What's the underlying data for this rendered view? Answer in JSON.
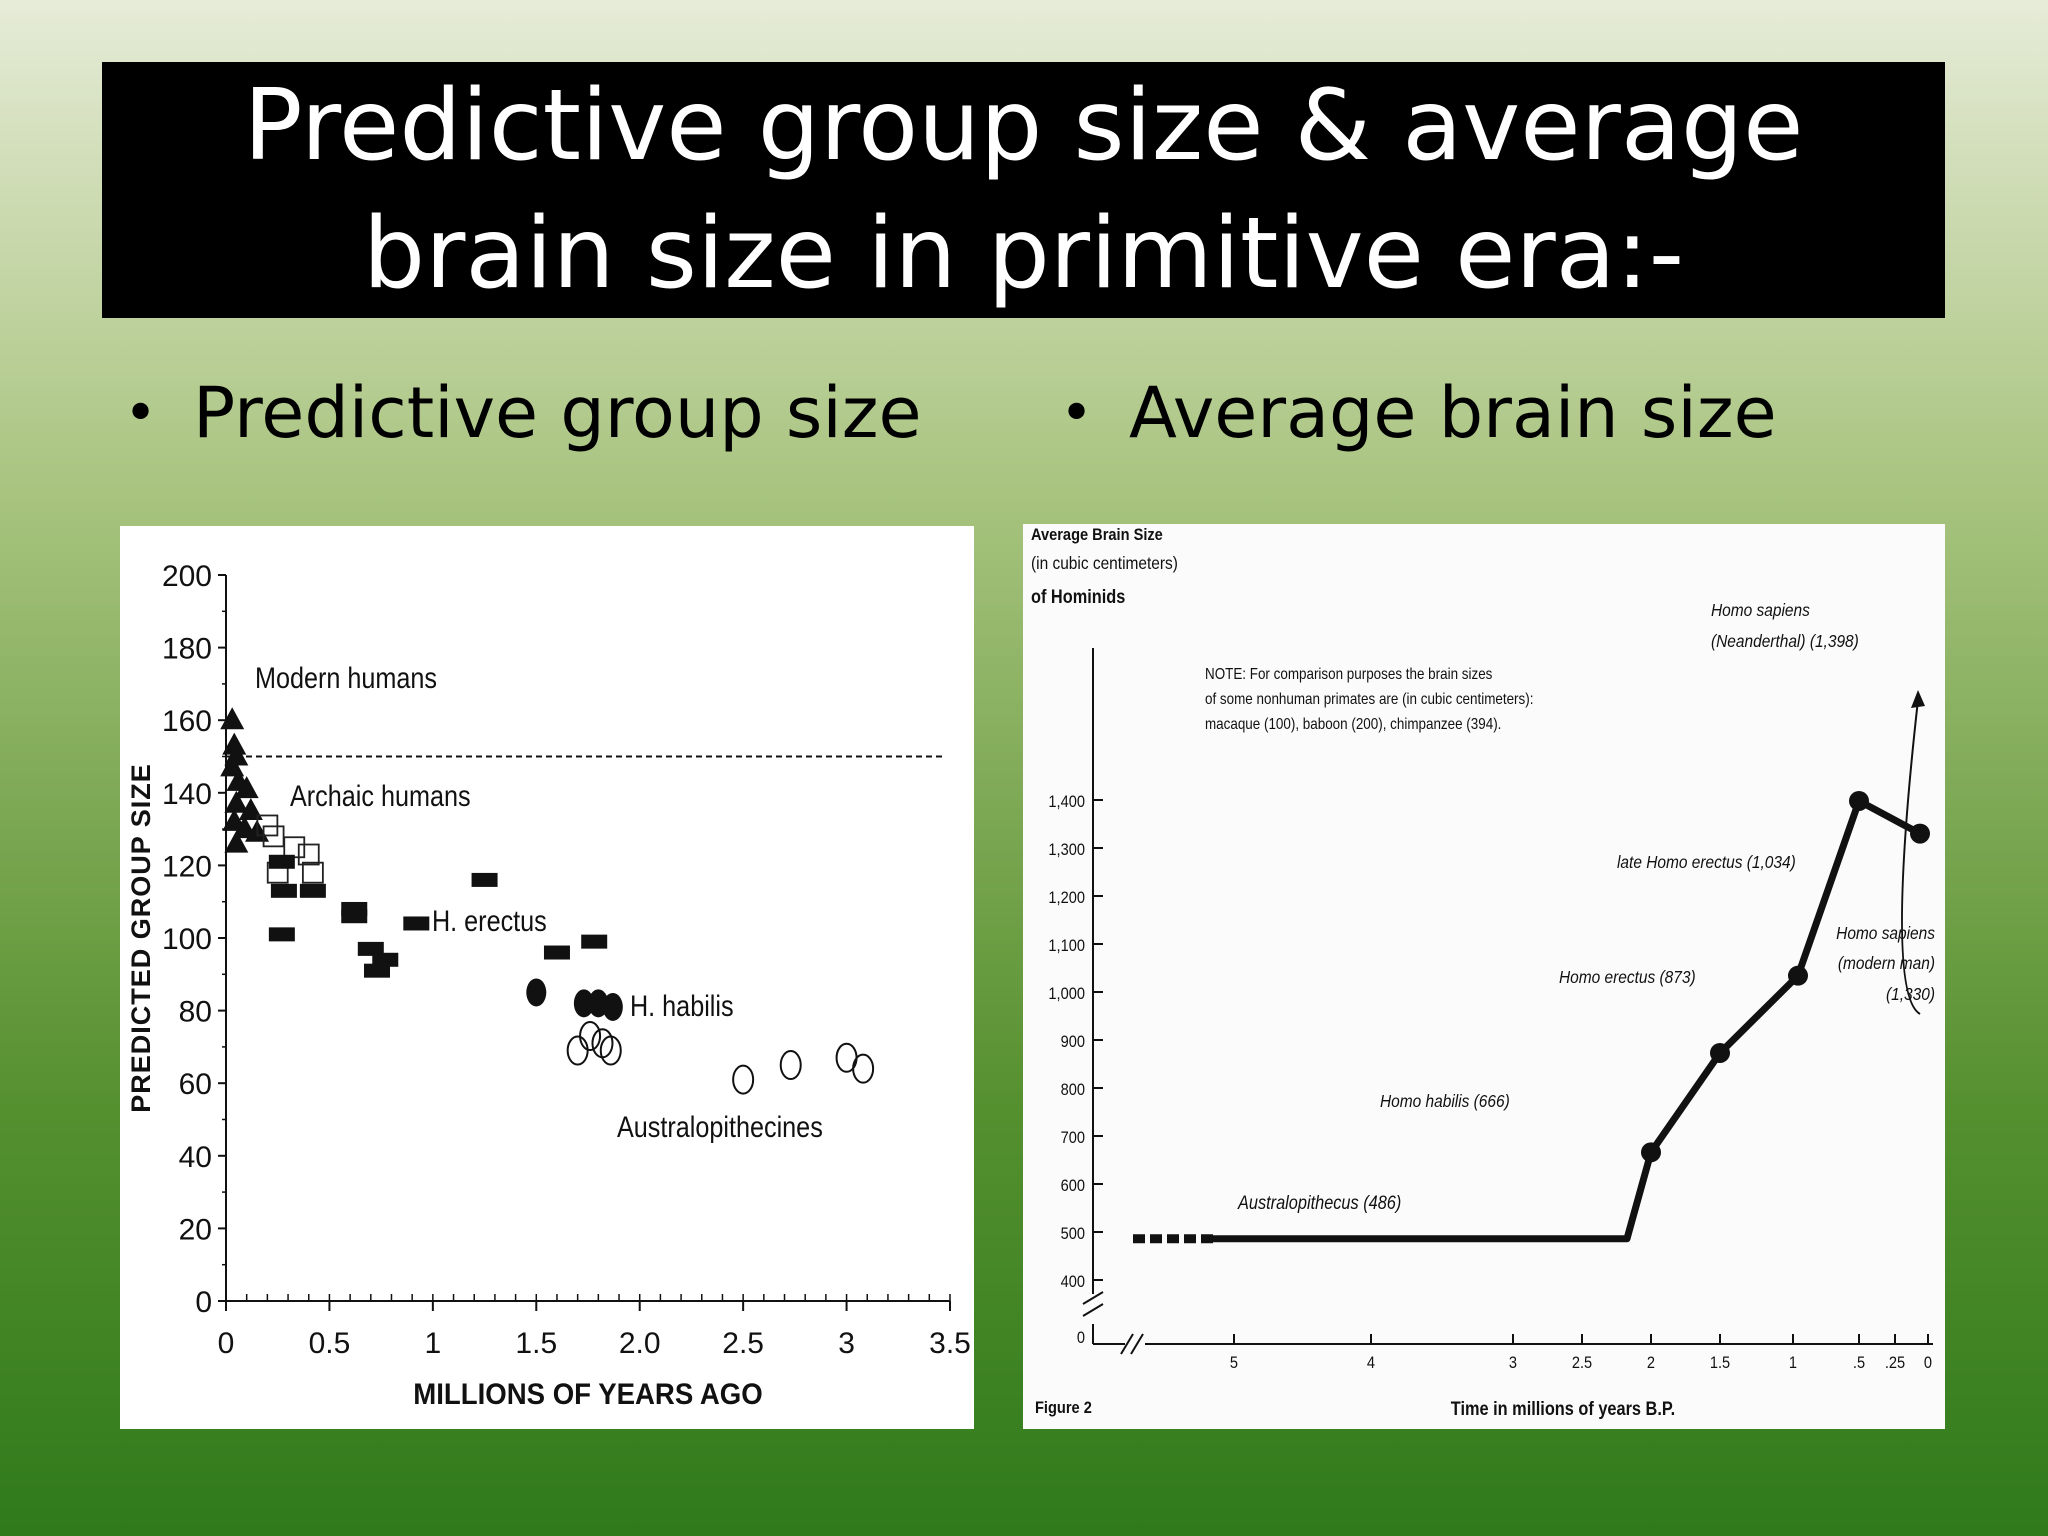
{
  "slide": {
    "title_line1": "Predictive group size & average",
    "title_line2": "brain size in primitive era:-",
    "bullets": [
      "Predictive group size",
      "Average brain size"
    ]
  },
  "chart_data": [
    {
      "type": "scatter",
      "title": "",
      "xlabel": "MILLIONS OF YEARS AGO",
      "ylabel": "PREDICTED GROUP SIZE",
      "xlim": [
        0,
        3.5
      ],
      "ylim": [
        0,
        200
      ],
      "x_ticks": [
        0,
        0.5,
        1,
        1.5,
        2.0,
        2.5,
        3,
        3.5
      ],
      "x_tick_labels": [
        "0",
        "0.5",
        "1",
        "1.5",
        "2.0",
        "2.5",
        "3",
        "3.5"
      ],
      "y_ticks": [
        0,
        20,
        40,
        60,
        80,
        100,
        120,
        140,
        160,
        180,
        200
      ],
      "y_tick_labels": [
        "0",
        "20",
        "40",
        "60",
        "80",
        "100",
        "120",
        "140",
        "160",
        "180",
        "200"
      ],
      "reference_line": {
        "y": 150,
        "style": "dashed"
      },
      "groups": [
        {
          "name": "Modern humans",
          "marker": "triangle-filled",
          "points": [
            [
              0.03,
              160
            ],
            [
              0.04,
              153
            ],
            [
              0.05,
              150
            ],
            [
              0.03,
              147
            ],
            [
              0.06,
              143
            ],
            [
              0.1,
              141
            ],
            [
              0.05,
              137
            ],
            [
              0.12,
              135
            ],
            [
              0.04,
              132
            ],
            [
              0.09,
              130
            ],
            [
              0.15,
              129
            ],
            [
              0.05,
              126
            ]
          ]
        },
        {
          "name": "Archaic humans",
          "marker": "square-open",
          "points": [
            [
              0.2,
              131
            ],
            [
              0.23,
              128
            ],
            [
              0.25,
              118
            ],
            [
              0.33,
              125
            ],
            [
              0.4,
              123
            ],
            [
              0.42,
              118
            ]
          ]
        },
        {
          "name": "H. erectus",
          "marker": "rect-filled",
          "points": [
            [
              0.27,
              121
            ],
            [
              0.28,
              113
            ],
            [
              0.27,
              101
            ],
            [
              0.42,
              113
            ],
            [
              0.62,
              108
            ],
            [
              0.62,
              106
            ],
            [
              0.7,
              97
            ],
            [
              0.77,
              94
            ],
            [
              0.73,
              91
            ],
            [
              0.92,
              104
            ],
            [
              1.25,
              116
            ],
            [
              1.6,
              96
            ],
            [
              1.78,
              99
            ]
          ]
        },
        {
          "name": "H. habilis",
          "marker": "circle-filled",
          "points": [
            [
              1.5,
              85
            ],
            [
              1.73,
              82
            ],
            [
              1.8,
              82
            ],
            [
              1.87,
              81
            ]
          ]
        },
        {
          "name": "Australopithecines",
          "marker": "circle-open",
          "points": [
            [
              1.7,
              69
            ],
            [
              1.76,
              73
            ],
            [
              1.82,
              71
            ],
            [
              1.86,
              69
            ],
            [
              2.5,
              61
            ],
            [
              2.73,
              65
            ],
            [
              3.0,
              67
            ],
            [
              3.08,
              64
            ]
          ]
        }
      ],
      "annotations": [
        "Modern humans",
        "Archaic humans",
        "H. erectus",
        "H. habilis",
        "Australopithecines"
      ]
    },
    {
      "type": "line",
      "title": "Average Brain Size",
      "title_lines": [
        "Average Brain Size",
        "(in cubic centimeters)",
        "of Hominids"
      ],
      "xlabel": "Time in millions of years B.P.",
      "ylabel": "",
      "figure_label": "Figure 2",
      "x_reversed": true,
      "x_ticks": [
        5,
        4,
        3,
        2.5,
        2,
        1.5,
        1,
        0.5,
        0.25,
        0
      ],
      "x_tick_labels": [
        "5",
        "4",
        "3",
        "2.5",
        "2",
        "1.5",
        "1",
        ".5",
        ".25",
        "0"
      ],
      "y_ticks": [
        0,
        400,
        500,
        600,
        700,
        800,
        900,
        1000,
        1100,
        1200,
        1300,
        1400
      ],
      "y_tick_labels": [
        "0",
        "400",
        "500",
        "600",
        "700",
        "800",
        "900",
        "1,000",
        "1,100",
        "1,200",
        "1,300",
        "1,400"
      ],
      "ylim": [
        350,
        1400
      ],
      "axis_break": true,
      "dashed_segment": {
        "x": [
          5.7,
          5.05
        ],
        "y": 486
      },
      "series": [
        {
          "name": "",
          "x": [
            5.05,
            2.3,
            2.0,
            1.5,
            0.95,
            0.5,
            0.05
          ],
          "y": [
            486,
            486,
            666,
            873,
            1034,
            1398,
            1330
          ]
        }
      ],
      "points": [
        {
          "x": 2.0,
          "y": 666,
          "label_lines": [
            "Homo habilis (666)"
          ]
        },
        {
          "x": 1.5,
          "y": 873,
          "label_lines": [
            "Homo erectus (873)"
          ]
        },
        {
          "x": 0.95,
          "y": 1034,
          "label_lines": [
            "late Homo erectus (1,034)"
          ]
        },
        {
          "x": 0.5,
          "y": 1398,
          "label_lines": [
            "Homo sapiens",
            "(Neanderthal) (1,398)"
          ]
        },
        {
          "x": 0.05,
          "y": 1330,
          "label_lines": [
            "Homo sapiens",
            "(modern man)",
            "(1,330)"
          ]
        }
      ],
      "segment_label": "Australopithecus (486)",
      "note_lines": [
        "NOTE: For comparison purposes the brain sizes",
        "of some nonhuman primates are (in cubic centimeters):",
        "macaque (100), baboon (200), chimpanzee (394)."
      ]
    }
  ]
}
